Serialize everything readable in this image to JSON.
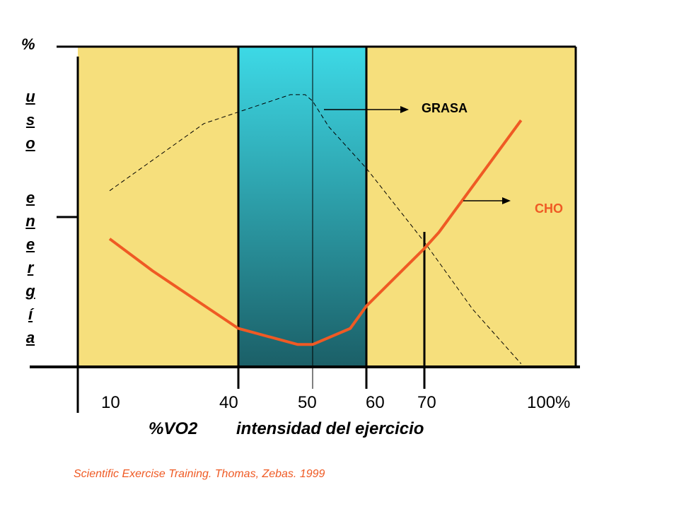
{
  "chart_data": {
    "type": "line",
    "y_axis_unit": "%",
    "ylabel_letters": [
      "u",
      "s",
      "o",
      "",
      "e",
      "n",
      "e",
      "r",
      "g",
      "í",
      "a"
    ],
    "x_ticks": [
      "10",
      "40",
      "50",
      "60",
      "70",
      "100%"
    ],
    "xlabel_left": "%VO2",
    "xlabel_right": "intensidad del ejercicio",
    "highlight_band": {
      "from": 40,
      "to": 60,
      "color_top": "#3dd9e6",
      "color_bottom": "#1b5f67"
    },
    "background_color": "#f6df7c",
    "marker_lines_x": [
      50,
      70
    ],
    "series": [
      {
        "name": "GRASA",
        "style": "dashed",
        "color": "#000000",
        "points": [
          [
            10,
            55
          ],
          [
            32,
            76
          ],
          [
            47,
            85
          ],
          [
            49,
            85
          ],
          [
            50,
            83
          ],
          [
            53,
            75
          ],
          [
            60,
            62
          ],
          [
            70,
            39
          ],
          [
            80,
            18
          ],
          [
            90,
            1
          ]
        ]
      },
      {
        "name": "CHO",
        "style": "solid",
        "color": "#ef5a24",
        "points": [
          [
            10,
            40
          ],
          [
            20,
            30
          ],
          [
            30,
            21
          ],
          [
            40,
            12
          ],
          [
            48,
            7
          ],
          [
            50,
            7
          ],
          [
            57,
            12
          ],
          [
            60,
            19
          ],
          [
            70,
            37
          ],
          [
            73,
            42
          ],
          [
            90,
            77
          ]
        ]
      }
    ],
    "ylim": [
      0,
      100
    ]
  },
  "labels": {
    "grasa": "GRASA",
    "cho": "CHO",
    "percent": "%"
  },
  "citation": "Scientific Exercise Training. Thomas, Zebas. 1999"
}
